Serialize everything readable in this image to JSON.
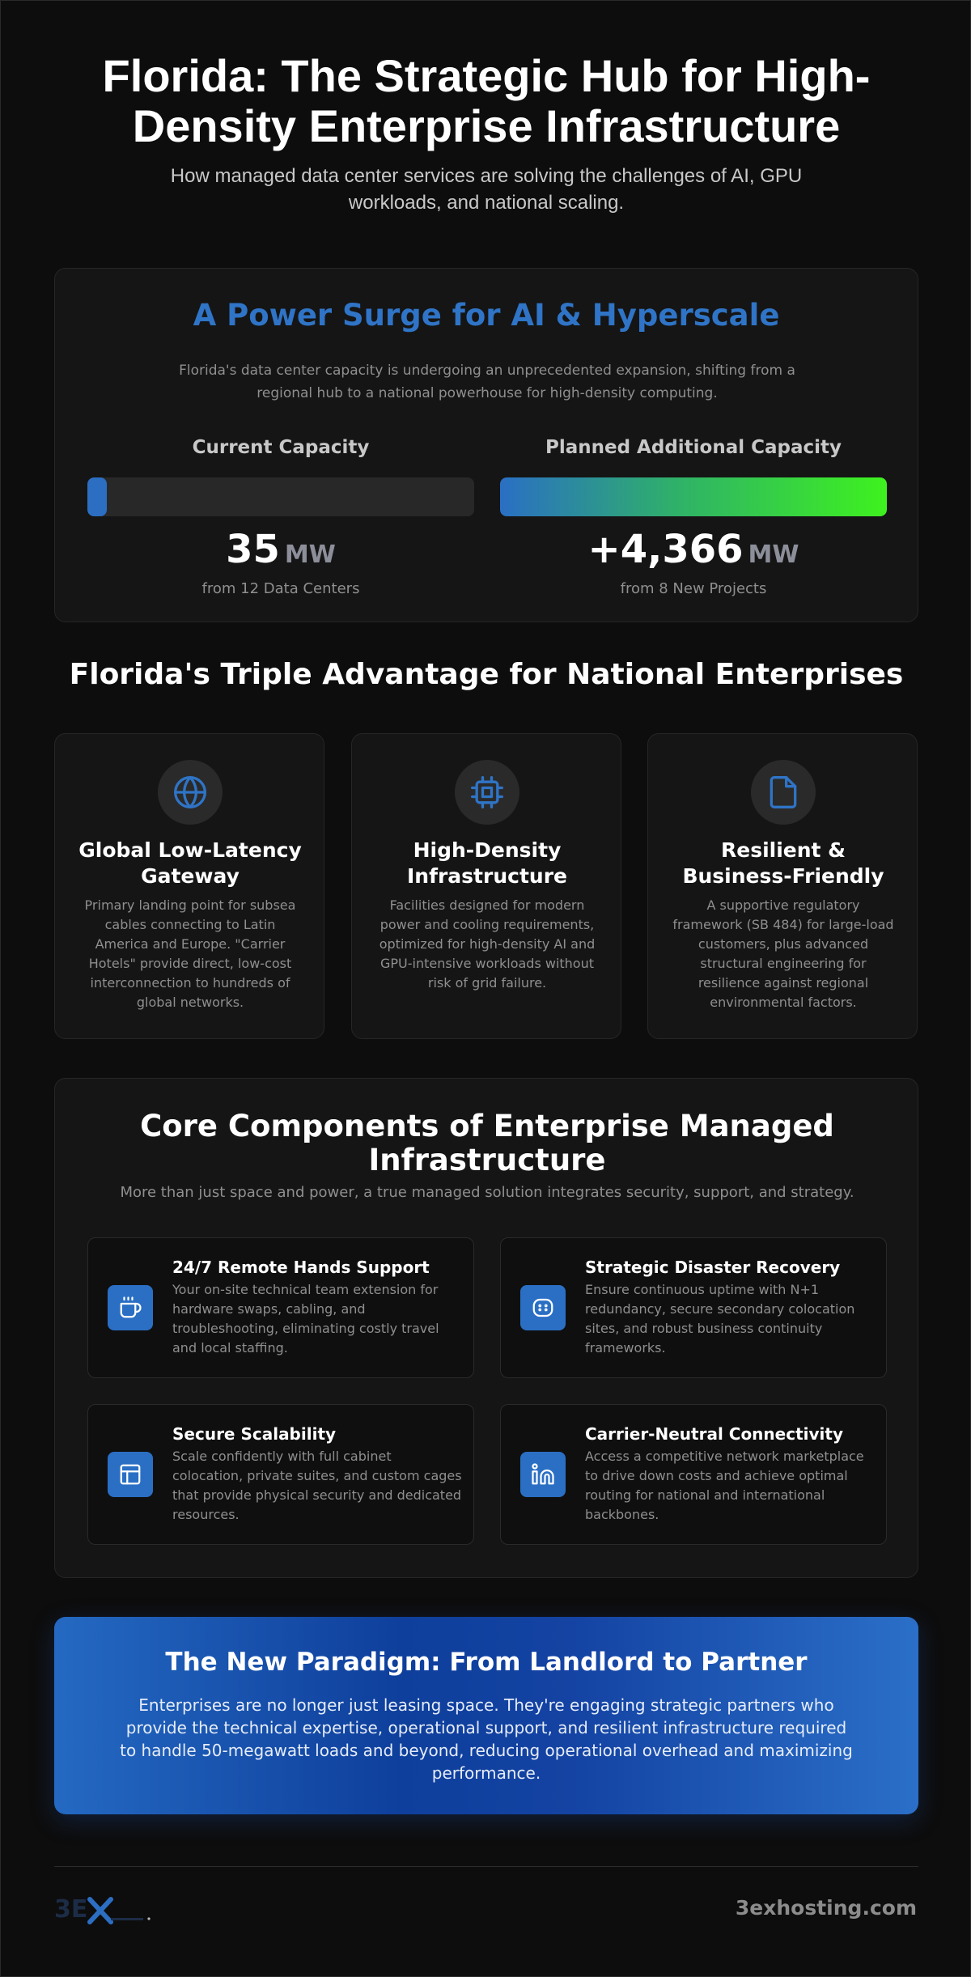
{
  "hero": {
    "title": "Florida: The Strategic Hub for High-Density Enterprise Infrastructure",
    "subtitle": "How managed data center services are solving the challenges of AI, GPU workloads, and national scaling."
  },
  "power": {
    "title": "A Power Surge for AI & Hyperscale",
    "description": "Florida's data center capacity is undergoing an unprecedented expansion, shifting from a regional hub to a national powerhouse for high-density computing.",
    "current": {
      "label": "Current Capacity",
      "value": "35",
      "unit": "MW",
      "note": "from 12 Data Centers",
      "fill_fraction": 0.05,
      "color": "#2c6ec2"
    },
    "planned": {
      "label": "Planned Additional Capacity",
      "value": "+4,366",
      "unit": "MW",
      "note": "from 8 New Projects",
      "fill_fraction": 1.0
    }
  },
  "advantages": {
    "title": "Florida's Triple Advantage for National Enterprises",
    "items": [
      {
        "icon": "globe-icon",
        "title": "Global Low-Latency Gateway",
        "description": "Primary landing point for subsea cables connecting to Latin America and Europe. \"Carrier Hotels\" provide direct, low-cost interconnection to hundreds of global networks."
      },
      {
        "icon": "cpu-chip-icon",
        "title": "High-Density Infrastructure",
        "description": "Facilities designed for modern power and cooling requirements, optimized for high-density AI and GPU-intensive workloads without risk of grid failure."
      },
      {
        "icon": "document-icon",
        "title": "Resilient & Business-Friendly",
        "description": "A supportive regulatory framework (SB 484) for large-load customers, plus advanced structural engineering for resilience against regional environmental factors."
      }
    ]
  },
  "core": {
    "title": "Core Components of Enterprise Managed Infrastructure",
    "subtitle": "More than just space and power, a true managed solution integrates security, support, and strategy.",
    "items": [
      {
        "icon": "coffee-cup-icon",
        "title": "24/7 Remote Hands Support",
        "description": "Your on-site technical team extension for hardware swaps, cabling, and troubleshooting, eliminating costly travel and local staffing."
      },
      {
        "icon": "recovery-icon",
        "title": "Strategic Disaster Recovery",
        "description": "Ensure continuous uptime with N+1 redundancy, secure secondary colocation sites, and robust business continuity frameworks."
      },
      {
        "icon": "layout-icon",
        "title": "Secure Scalability",
        "description": "Scale confidently with full cabinet colocation, private suites, and custom cages that provide physical security and dedicated resources."
      },
      {
        "icon": "linkedin-icon",
        "title": "Carrier-Neutral Connectivity",
        "description": "Access a competitive network marketplace to drive down costs and achieve optimal routing for national and international backbones."
      }
    ]
  },
  "paradigm": {
    "title": "The New Paradigm: From Landlord to Partner",
    "description": "Enterprises are no longer just leasing space. They're engaging strategic partners who provide the technical expertise, operational support, and resilient infrastructure required to handle 50-megawatt loads and beyond, reducing operational overhead and maximizing performance."
  },
  "footer": {
    "logo_text": "3EX",
    "domain": "3exhosting.com"
  },
  "colors": {
    "accent": "#2c6ec2",
    "background": "#0d0d0d",
    "card": "#151515",
    "gradient_end": "#3ef21e"
  }
}
